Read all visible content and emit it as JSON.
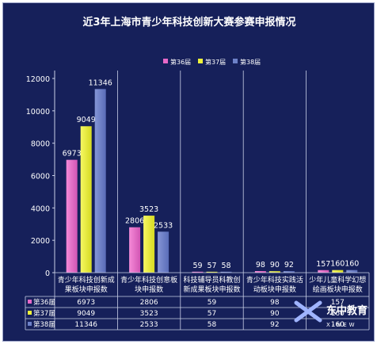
{
  "chart_data": {
    "type": "bar",
    "title": "近3年上海市青少年科技创新大赛参赛申报情况",
    "categories": [
      [
        "青少年科技创新成",
        "果板块申报数"
      ],
      [
        "青少年科技创意板",
        "块申报数"
      ],
      [
        "科技辅导员科教创",
        "新成果板块申报数"
      ],
      [
        "青少年科技实践活",
        "动板块申报数"
      ],
      [
        "少年儿童科学幻想",
        "绘画板块申报数"
      ]
    ],
    "series": [
      {
        "name": "第36届",
        "color": "#e769c8",
        "values": [
          6973,
          2806,
          59,
          98,
          157
        ]
      },
      {
        "name": "第37届",
        "color": "#eef23a",
        "values": [
          9049,
          3523,
          57,
          90,
          160
        ]
      },
      {
        "name": "第38届",
        "color": "#6d81c8",
        "values": [
          11346,
          2533,
          58,
          92,
          160
        ]
      }
    ],
    "ylim": [
      0,
      12000
    ],
    "yticks": [
      "0",
      "2000",
      "4000",
      "6000",
      "8000",
      "10000",
      "12000"
    ],
    "grid": false,
    "legend": "top",
    "table": true
  },
  "watermark": {
    "text": "东中教育",
    "sub": "X-NEW"
  }
}
